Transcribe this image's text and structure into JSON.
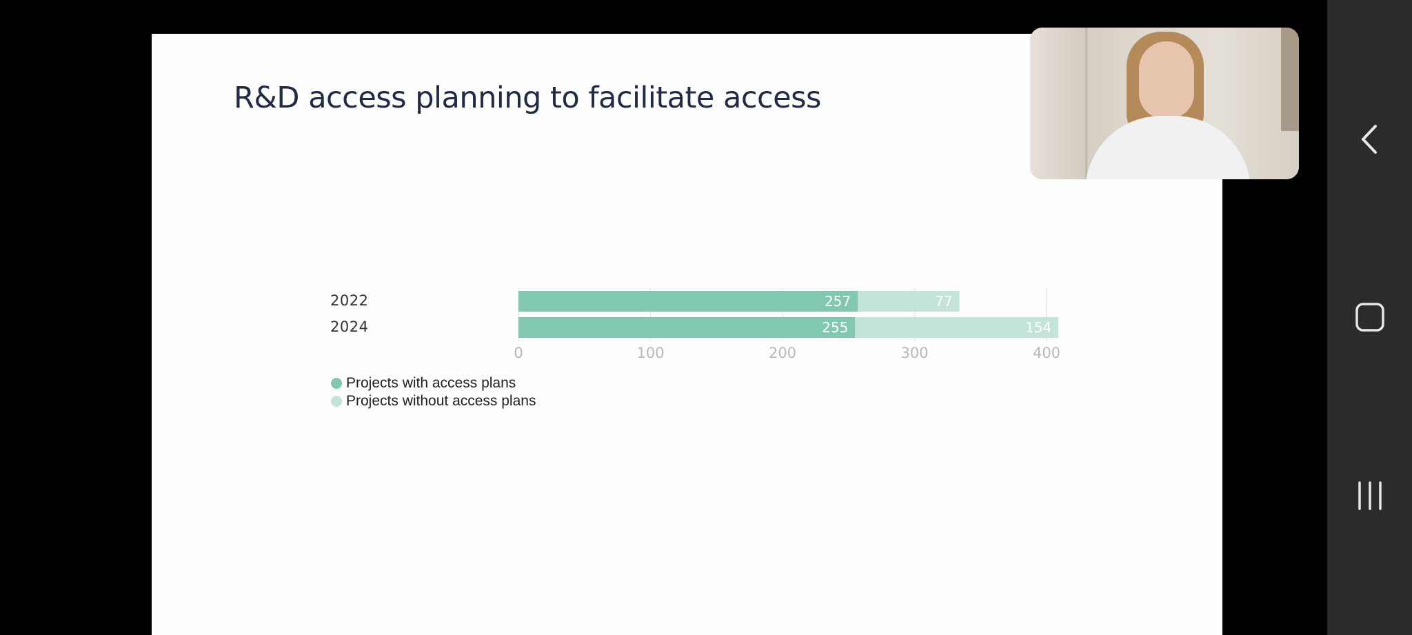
{
  "slide": {
    "title": "R&D access planning to facilitate access"
  },
  "chart_data": {
    "type": "bar",
    "orientation": "horizontal",
    "stacked": true,
    "categories": [
      "2022",
      "2024"
    ],
    "series": [
      {
        "name": "Projects with access plans",
        "values": [
          257,
          255
        ],
        "color": "#82c8b0"
      },
      {
        "name": "Projects without access plans",
        "values": [
          77,
          154
        ],
        "color": "#c4e4d8"
      }
    ],
    "xlim": [
      0,
      400
    ],
    "xticks": [
      "0",
      "100",
      "200",
      "300",
      "400"
    ],
    "grid": true,
    "legend_position": "bottom-left"
  },
  "legend": {
    "items": [
      {
        "label": "Projects with access plans",
        "color": "#82c8b0"
      },
      {
        "label": "Projects without access plans",
        "color": "#c4e4d8"
      }
    ]
  },
  "video": {
    "icon": "participant-video-thumbnail"
  },
  "navbar": {
    "back_icon": "chevron-left-icon",
    "home_icon": "rounded-square-icon",
    "recent_icon": "three-bars-icon",
    "background": "#2b2b2b"
  }
}
